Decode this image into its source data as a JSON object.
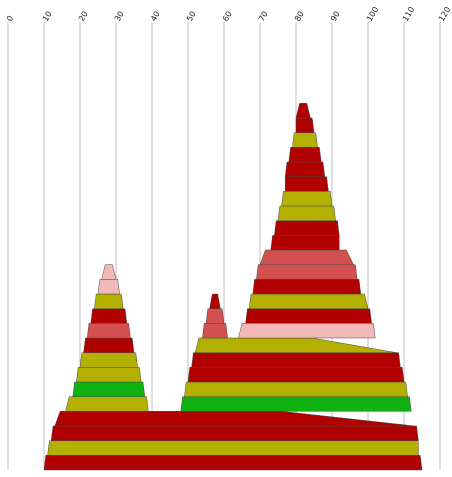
{
  "colors": {
    "red": "#b00000",
    "olive": "#b3b000",
    "green": "#10b010",
    "salmon": "#d45050",
    "pink": "#f0b8b8",
    "gridline": "#bfbfbf",
    "outline": "#4a4a4a"
  },
  "chart_data": {
    "type": "area",
    "xlabel": "",
    "ylabel": "",
    "xlim": [
      0,
      120
    ],
    "x_ticks": [
      "0",
      "10",
      "20",
      "30",
      "40",
      "50",
      "60",
      "70",
      "80",
      "90",
      "100",
      "110",
      "120"
    ],
    "x_tick_values": [
      0,
      10,
      20,
      30,
      40,
      50,
      60,
      70,
      80,
      90,
      100,
      110,
      120
    ],
    "grid": true,
    "legend": "none",
    "stack_levels": 30,
    "bands": [
      {
        "level": 0,
        "color": "red",
        "x_left": 10,
        "x_right": 115
      },
      {
        "level": 1,
        "color": "olive",
        "x_left": 11,
        "x_right": 114
      },
      {
        "level": 2,
        "color": "red",
        "x_left": 12,
        "x_right": 114
      },
      {
        "level": 3,
        "color": "red",
        "x_left": 13,
        "x_right": 113
      },
      {
        "level": 4,
        "color": "olive",
        "x_left": 16,
        "x_right": 39
      },
      {
        "level": 5,
        "color": "green",
        "x_left": 18,
        "x_right": 38
      },
      {
        "level": 6,
        "color": "olive",
        "x_left": 19,
        "x_right": 37
      },
      {
        "level": 7,
        "color": "olive",
        "x_left": 20,
        "x_right": 36
      },
      {
        "level": 8,
        "color": "red",
        "x_left": 21,
        "x_right": 35
      },
      {
        "level": 9,
        "color": "salmon",
        "x_left": 22,
        "x_right": 34
      },
      {
        "level": 10,
        "color": "red",
        "x_left": 23,
        "x_right": 33
      },
      {
        "level": 11,
        "color": "olive",
        "x_left": 24,
        "x_right": 32
      },
      {
        "level": 12,
        "color": "pink",
        "x_left": 25,
        "x_right": 31
      },
      {
        "level": 13,
        "color": "pink",
        "x_left": 26,
        "x_right": 30
      },
      {
        "level": 4,
        "color": "green",
        "x_left": 48,
        "x_right": 112
      },
      {
        "level": 5,
        "color": "olive",
        "x_left": 49,
        "x_right": 111
      },
      {
        "level": 6,
        "color": "red",
        "x_left": 50,
        "x_right": 110
      },
      {
        "level": 7,
        "color": "red",
        "x_left": 51,
        "x_right": 109
      },
      {
        "level": 8,
        "color": "olive",
        "x_left": 52,
        "x_right": 108
      },
      {
        "level": 9,
        "color": "salmon",
        "x_left": 54,
        "x_right": 61
      },
      {
        "level": 10,
        "color": "salmon",
        "x_left": 55,
        "x_right": 60
      },
      {
        "level": 11,
        "color": "red",
        "x_left": 56,
        "x_right": 59
      },
      {
        "level": 9,
        "color": "pink",
        "x_left": 64,
        "x_right": 102
      },
      {
        "level": 10,
        "color": "red",
        "x_left": 66,
        "x_right": 101
      },
      {
        "level": 11,
        "color": "olive",
        "x_left": 67,
        "x_right": 100
      },
      {
        "level": 12,
        "color": "red",
        "x_left": 68,
        "x_right": 98
      },
      {
        "level": 13,
        "color": "salmon",
        "x_left": 69,
        "x_right": 97
      },
      {
        "level": 14,
        "color": "salmon",
        "x_left": 70,
        "x_right": 96
      },
      {
        "level": 15,
        "color": "red",
        "x_left": 73,
        "x_right": 92
      },
      {
        "level": 16,
        "color": "red",
        "x_left": 74,
        "x_right": 92
      },
      {
        "level": 17,
        "color": "olive",
        "x_left": 75,
        "x_right": 91
      },
      {
        "level": 18,
        "color": "olive",
        "x_left": 76,
        "x_right": 90
      },
      {
        "level": 19,
        "color": "red",
        "x_left": 77,
        "x_right": 89
      },
      {
        "level": 20,
        "color": "red",
        "x_left": 77,
        "x_right": 88
      },
      {
        "level": 21,
        "color": "red",
        "x_left": 78,
        "x_right": 87
      },
      {
        "level": 22,
        "color": "olive",
        "x_left": 79,
        "x_right": 86
      },
      {
        "level": 23,
        "color": "red",
        "x_left": 80,
        "x_right": 85
      },
      {
        "level": 24,
        "color": "red",
        "x_left": 80,
        "x_right": 84
      }
    ]
  }
}
